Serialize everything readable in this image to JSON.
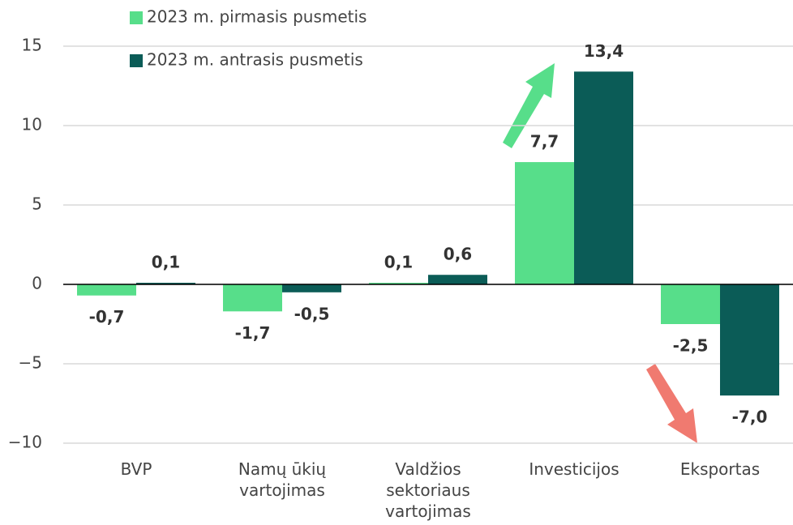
{
  "chart_data": {
    "type": "bar",
    "categories": [
      "BVP",
      "Namų ūkių vartojimas",
      "Valdžios sektoriaus vartojimas",
      "Investicijos",
      "Eksportas"
    ],
    "series": [
      {
        "name": "2023 m. pirmasis pusmetis",
        "color": "#57de8a",
        "values": [
          -0.7,
          -1.7,
          0.1,
          7.7,
          -2.5
        ],
        "value_labels": [
          "-0,7",
          "-1,7",
          "0,1",
          "7,7",
          "-2,5"
        ]
      },
      {
        "name": "2023 m. antrasis pusmetis",
        "color": "#0b5c57",
        "values": [
          0.1,
          -0.5,
          0.6,
          13.4,
          -7.0
        ],
        "value_labels": [
          "0,1",
          "-0,5",
          "0,6",
          "13,4",
          "-7,0"
        ]
      }
    ],
    "ylim": [
      -10,
      15
    ],
    "yticks": [
      {
        "value": -10,
        "label": "−10"
      },
      {
        "value": -5,
        "label": "−5"
      },
      0,
      5,
      10,
      15
    ],
    "grid": true
  }
}
